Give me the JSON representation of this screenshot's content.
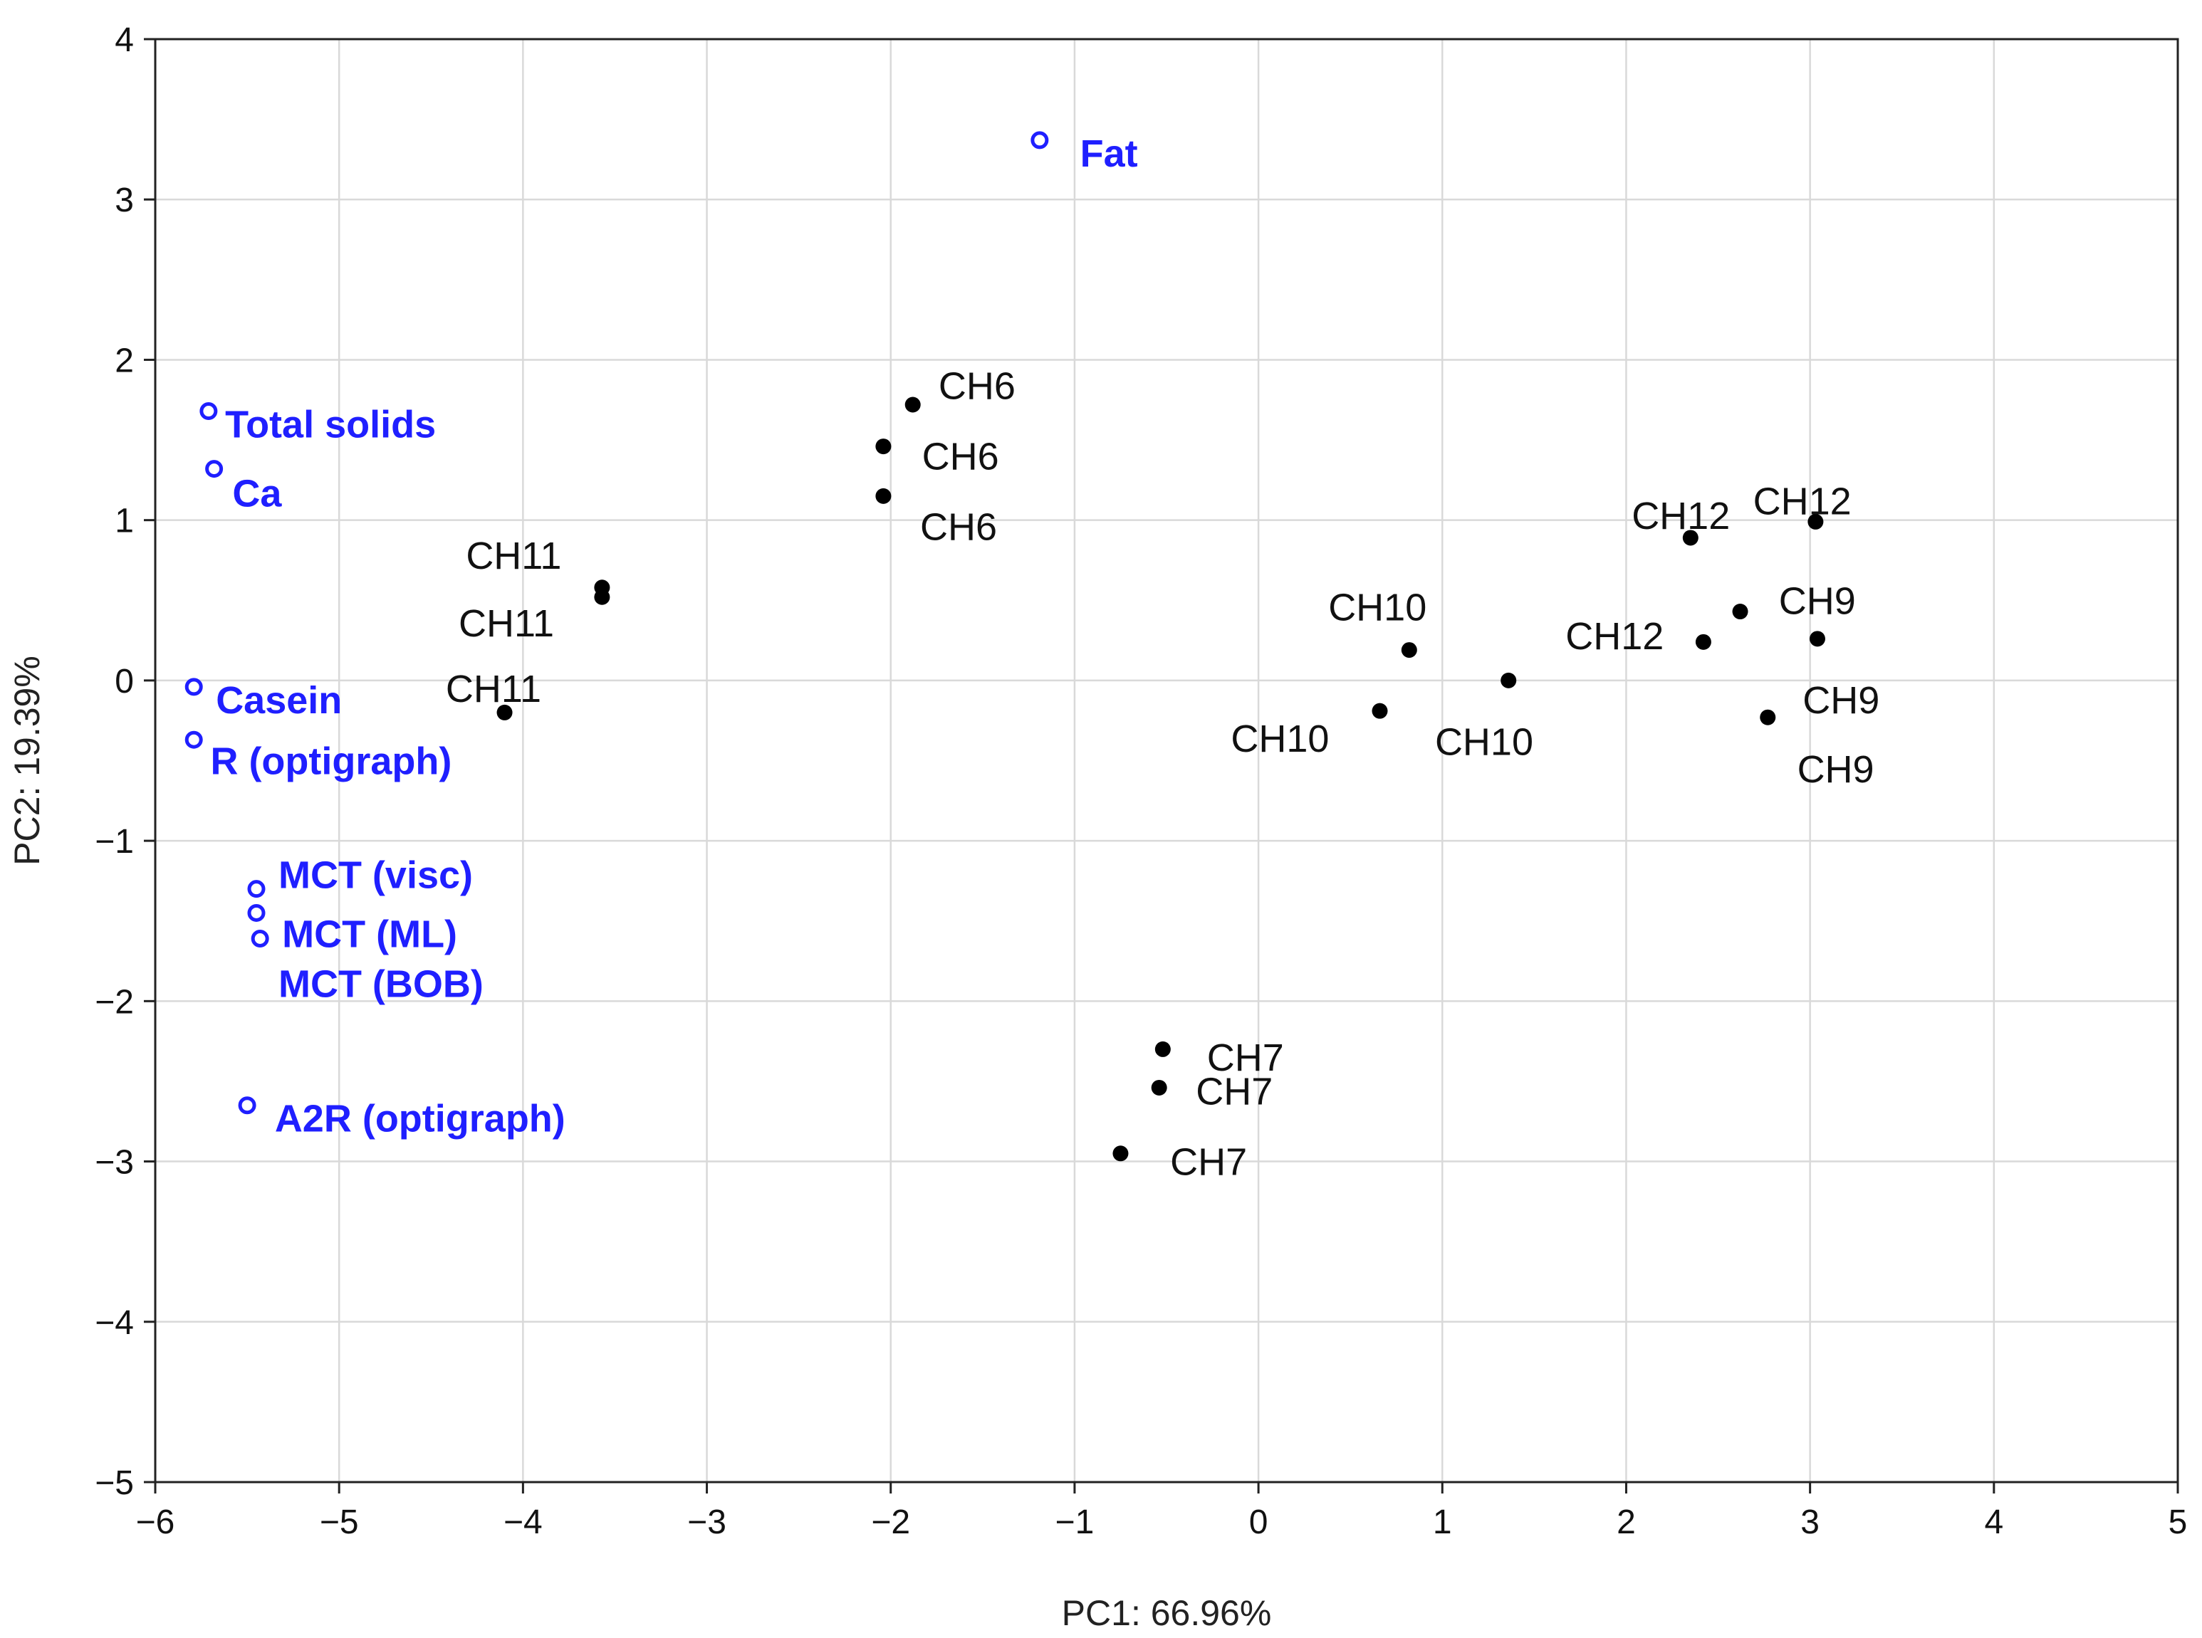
{
  "chart_data": {
    "type": "scatter",
    "title": "",
    "xlabel": "PC1: 66.96%",
    "ylabel": "PC2: 19.39%",
    "xlim": [
      -6,
      5
    ],
    "ylim": [
      -5,
      4
    ],
    "grid": true,
    "x_ticks": [
      -6,
      -5,
      -4,
      -3,
      -2,
      -1,
      0,
      1,
      2,
      3,
      4,
      5
    ],
    "y_ticks": [
      -5,
      -4,
      -3,
      -2,
      -1,
      0,
      1,
      2,
      3,
      4
    ],
    "x_tick_labels": [
      "−6",
      "−5",
      "−4",
      "−3",
      "−2",
      "−1",
      "0",
      "1",
      "2",
      "3",
      "4",
      "5"
    ],
    "y_tick_labels": [
      "−5",
      "−4",
      "−3",
      "−2",
      "−1",
      "0",
      "1",
      "2",
      "3",
      "4"
    ],
    "series": [
      {
        "name": "samples",
        "marker": "filled-circle",
        "color": "#000000",
        "points": [
          {
            "label": "CH6",
            "x": -1.88,
            "y": 1.72,
            "dx": 0.14,
            "dy": 0.12
          },
          {
            "label": "CH6",
            "x": -2.04,
            "y": 1.46,
            "dx": 0.21,
            "dy": -0.06
          },
          {
            "label": "CH6",
            "x": -2.04,
            "y": 1.15,
            "dx": 0.2,
            "dy": -0.19
          },
          {
            "label": "CH11",
            "x": -3.57,
            "y": 0.58,
            "dx": -0.74,
            "dy": 0.2
          },
          {
            "label": "CH11",
            "x": -3.57,
            "y": 0.52,
            "dx": -0.78,
            "dy": -0.16
          },
          {
            "label": "CH11",
            "x": -4.1,
            "y": -0.2,
            "dx": -0.32,
            "dy": 0.15
          },
          {
            "label": "CH7",
            "x": -0.52,
            "y": -2.3,
            "dx": 0.24,
            "dy": -0.05
          },
          {
            "label": "CH7",
            "x": -0.54,
            "y": -2.54,
            "dx": 0.2,
            "dy": -0.02
          },
          {
            "label": "CH7",
            "x": -0.75,
            "y": -2.95,
            "dx": 0.27,
            "dy": -0.05
          },
          {
            "label": "CH10",
            "x": 0.82,
            "y": 0.19,
            "dx": -0.44,
            "dy": 0.27
          },
          {
            "label": "CH10",
            "x": 0.66,
            "y": -0.19,
            "dx": -0.81,
            "dy": -0.17
          },
          {
            "label": "CH10",
            "x": 1.36,
            "y": 0.0,
            "dx": -0.4,
            "dy": -0.38
          },
          {
            "label": "CH12",
            "x": 2.35,
            "y": 0.89,
            "dx": -0.32,
            "dy": 0.14
          },
          {
            "label": "CH12",
            "x": 3.03,
            "y": 0.99,
            "dx": -0.34,
            "dy": 0.13
          },
          {
            "label": "CH12",
            "x": 2.42,
            "y": 0.24,
            "dx": -0.75,
            "dy": 0.04
          },
          {
            "label": "CH9",
            "x": 2.62,
            "y": 0.43,
            "dx": 0.21,
            "dy": 0.07
          },
          {
            "label": "CH9",
            "x": 3.04,
            "y": 0.26,
            "dx": -0.08,
            "dy": -0.38
          },
          {
            "label": "CH9",
            "x": 2.77,
            "y": -0.23,
            "dx": 0.16,
            "dy": -0.32
          }
        ]
      },
      {
        "name": "variables",
        "marker": "open-circle",
        "color": "#1f1fff",
        "points": [
          {
            "label": "Fat",
            "x": -1.19,
            "y": 3.37,
            "dx": 0.22,
            "dy": -0.08
          },
          {
            "label": "Total solids",
            "x": -5.71,
            "y": 1.68,
            "dx": 0.09,
            "dy": -0.08
          },
          {
            "label": "Ca",
            "x": -5.68,
            "y": 1.32,
            "dx": 0.1,
            "dy": -0.15
          },
          {
            "label": "Casein",
            "x": -5.79,
            "y": -0.04,
            "dx": 0.12,
            "dy": -0.08
          },
          {
            "label": "R (optigraph)",
            "x": -5.79,
            "y": -0.37,
            "dx": 0.09,
            "dy": -0.13
          },
          {
            "label": "MCT (visc)",
            "x": -5.45,
            "y": -1.3,
            "dx": 0.12,
            "dy": 0.09
          },
          {
            "label": "MCT (ML)",
            "x": -5.45,
            "y": -1.45,
            "dx": 0.14,
            "dy": -0.13
          },
          {
            "label": "MCT (BOB)",
            "x": -5.43,
            "y": -1.61,
            "dx": 0.1,
            "dy": -0.28
          },
          {
            "label": "A2R (optigraph)",
            "x": -5.5,
            "y": -2.65,
            "dx": 0.15,
            "dy": -0.08
          }
        ]
      }
    ]
  }
}
